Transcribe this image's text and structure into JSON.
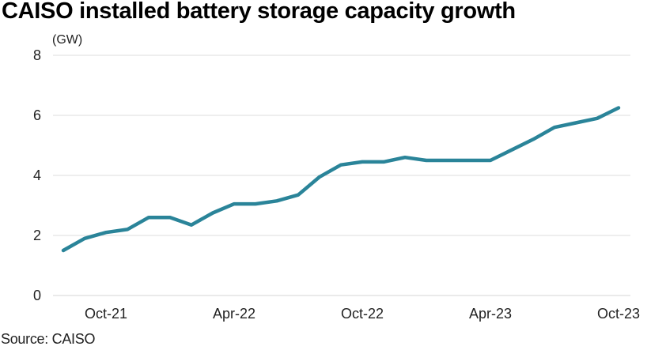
{
  "chart_data": {
    "type": "line",
    "title": "CAISO installed battery storage capacity growth",
    "ylabel": "(GW)",
    "xlabel": "",
    "source": "Source: CAISO",
    "ylim": [
      0,
      8
    ],
    "yticks": [
      0,
      2,
      4,
      6,
      8
    ],
    "grid": true,
    "x": [
      "Aug-21",
      "Sep-21",
      "Oct-21",
      "Nov-21",
      "Dec-21",
      "Jan-22",
      "Feb-22",
      "Mar-22",
      "Apr-22",
      "May-22",
      "Jun-22",
      "Jul-22",
      "Aug-22",
      "Sep-22",
      "Oct-22",
      "Nov-22",
      "Dec-22",
      "Jan-23",
      "Feb-23",
      "Mar-23",
      "Apr-23",
      "May-23",
      "Jun-23",
      "Jul-23",
      "Aug-23",
      "Sep-23",
      "Oct-23"
    ],
    "xtick_labels": [
      "Oct-21",
      "Apr-22",
      "Oct-22",
      "Apr-23",
      "Oct-23"
    ],
    "xtick_indices": [
      2,
      8,
      14,
      20,
      26
    ],
    "series": [
      {
        "name": "Installed battery storage capacity",
        "color": "#2a8499",
        "values": [
          1.5,
          1.9,
          2.1,
          2.2,
          2.6,
          2.6,
          2.35,
          2.75,
          3.05,
          3.05,
          3.15,
          3.35,
          3.95,
          4.35,
          4.45,
          4.45,
          4.6,
          4.5,
          4.5,
          4.5,
          4.5,
          4.85,
          5.2,
          5.6,
          5.75,
          5.9,
          6.25
        ]
      }
    ]
  }
}
